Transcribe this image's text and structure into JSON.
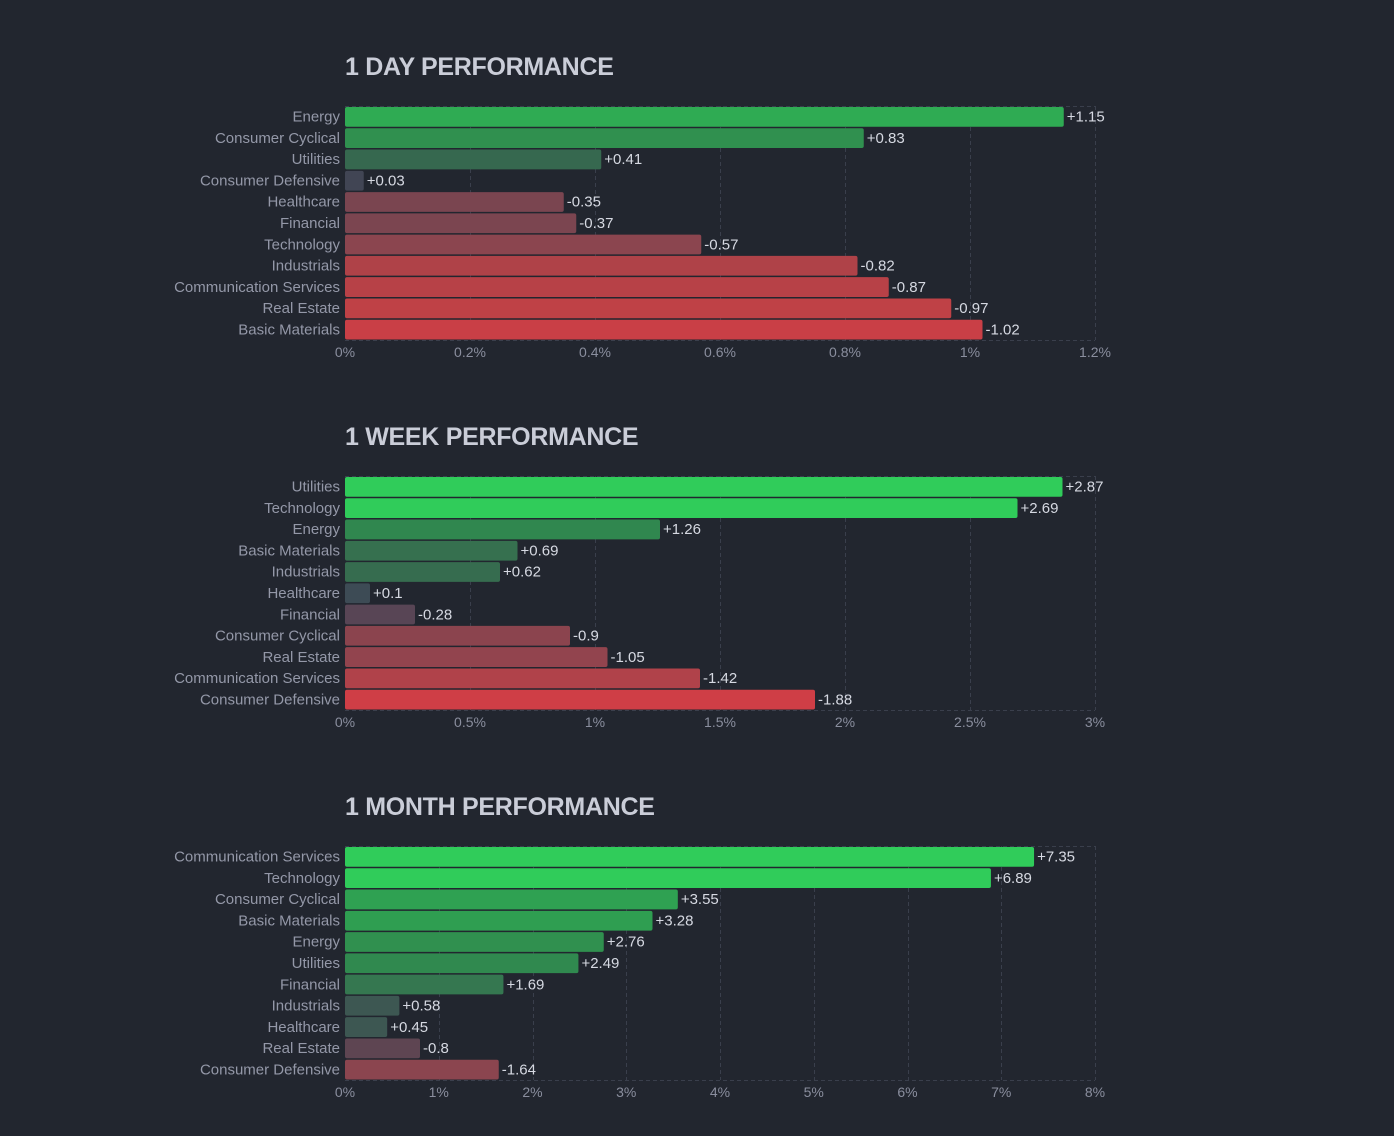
{
  "chart_data": [
    {
      "type": "bar",
      "orientation": "horizontal",
      "title": "1 DAY PERFORMANCE",
      "xlabel": "",
      "ylabel": "",
      "xlim": [
        0,
        1.2
      ],
      "ticks": [
        "0%",
        "0.2%",
        "0.4%",
        "0.6%",
        "0.8%",
        "1%",
        "1.2%"
      ],
      "tick_values": [
        0,
        0.2,
        0.4,
        0.6,
        0.8,
        1.0,
        1.2
      ],
      "grid": true,
      "categories": [
        "Energy",
        "Consumer Cyclical",
        "Utilities",
        "Consumer Defensive",
        "Healthcare",
        "Financial",
        "Technology",
        "Industrials",
        "Communication Services",
        "Real Estate",
        "Basic Materials"
      ],
      "values": [
        1.15,
        0.83,
        0.41,
        0.03,
        -0.35,
        -0.37,
        -0.57,
        -0.82,
        -0.87,
        -0.97,
        -1.02
      ],
      "value_labels": [
        "+1.15",
        "+0.83",
        "+0.41",
        "+0.03",
        "-0.35",
        "-0.37",
        "-0.57",
        "-0.82",
        "-0.87",
        "-0.97",
        "-1.02"
      ],
      "colors": [
        "#2fab53",
        "#30904f",
        "#36684f",
        "#414554",
        "#7a4550",
        "#7b4550",
        "#8b454f",
        "#af4248",
        "#b74147",
        "#bf4146",
        "#c93f46"
      ]
    },
    {
      "type": "bar",
      "orientation": "horizontal",
      "title": "1 WEEK PERFORMANCE",
      "xlabel": "",
      "ylabel": "",
      "xlim": [
        0,
        3
      ],
      "ticks": [
        "0%",
        "0.5%",
        "1%",
        "1.5%",
        "2%",
        "2.5%",
        "3%"
      ],
      "tick_values": [
        0,
        0.5,
        1,
        1.5,
        2,
        2.5,
        3
      ],
      "grid": true,
      "categories": [
        "Utilities",
        "Technology",
        "Energy",
        "Basic Materials",
        "Industrials",
        "Healthcare",
        "Financial",
        "Consumer Cyclical",
        "Real Estate",
        "Communication Services",
        "Consumer Defensive"
      ],
      "values": [
        2.87,
        2.69,
        1.26,
        0.69,
        0.62,
        0.1,
        -0.28,
        -0.9,
        -1.05,
        -1.42,
        -1.88
      ],
      "value_labels": [
        "+2.87",
        "+2.69",
        "+1.26",
        "+0.69",
        "+0.62",
        "+0.1",
        "-0.28",
        "-0.9",
        "-1.05",
        "-1.42",
        "-1.88"
      ],
      "colors": [
        "#30cc5a",
        "#30cc5a",
        "#30874f",
        "#36704f",
        "#366c4f",
        "#3d4b55",
        "#584555",
        "#8b444e",
        "#92444e",
        "#b0424a",
        "#cf3e46"
      ]
    },
    {
      "type": "bar",
      "orientation": "horizontal",
      "title": "1 MONTH PERFORMANCE",
      "xlabel": "",
      "ylabel": "",
      "xlim": [
        0,
        8
      ],
      "ticks": [
        "0%",
        "1%",
        "2%",
        "3%",
        "4%",
        "5%",
        "6%",
        "7%",
        "8%"
      ],
      "tick_values": [
        0,
        1,
        2,
        3,
        4,
        5,
        6,
        7,
        8
      ],
      "grid": true,
      "categories": [
        "Communication Services",
        "Technology",
        "Consumer Cyclical",
        "Basic Materials",
        "Energy",
        "Utilities",
        "Financial",
        "Industrials",
        "Healthcare",
        "Real Estate",
        "Consumer Defensive"
      ],
      "values": [
        7.35,
        6.89,
        3.55,
        3.28,
        2.76,
        2.49,
        1.69,
        0.58,
        0.45,
        -0.8,
        -1.64
      ],
      "value_labels": [
        "+7.35",
        "+6.89",
        "+3.55",
        "+3.28",
        "+2.76",
        "+2.49",
        "+1.69",
        "-0.8",
        "-1.64"
      ],
      "value_labels_full": [
        "+7.35",
        "+6.89",
        "+3.55",
        "+3.28",
        "+2.76",
        "+2.49",
        "+1.69",
        "+0.58",
        "+0.45",
        "-0.8",
        "-1.64"
      ],
      "colors": [
        "#30cc5a",
        "#30cc5a",
        "#2fa152",
        "#2f9e51",
        "#30904f",
        "#30894f",
        "#357750",
        "#3d5752",
        "#3d5752",
        "#5e4552",
        "#8b454f"
      ]
    }
  ]
}
